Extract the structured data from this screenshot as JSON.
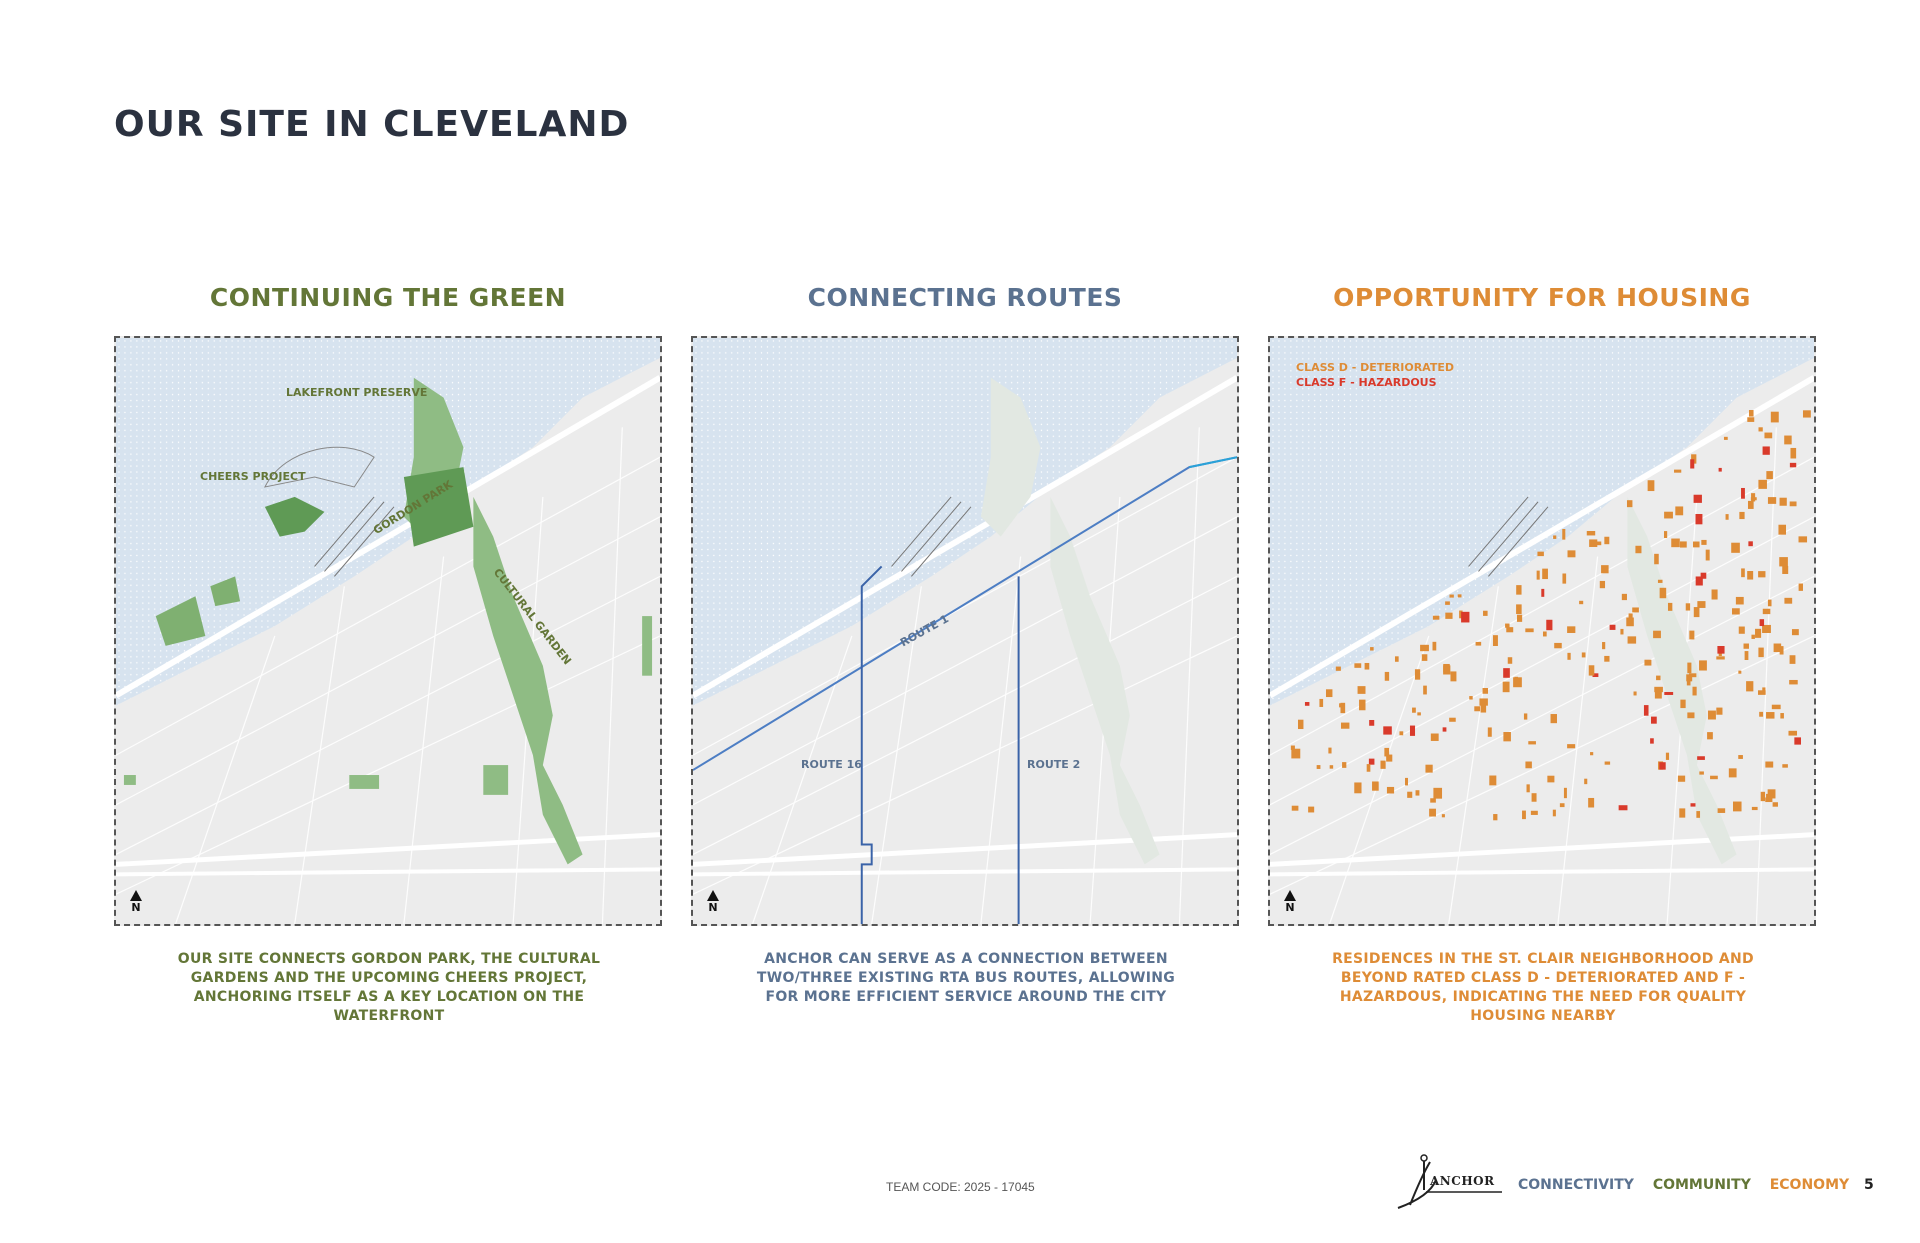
{
  "page_title": "OUR SITE IN CLEVELAND",
  "panels": [
    {
      "heading": "CONTINUING THE GREEN",
      "labels": {
        "lakefront": "LAKEFRONT PRESERVE",
        "cheers": "CHEERS PROJECT",
        "gordon": "GORDON PARK",
        "cultural": "CULTURAL GARDEN"
      },
      "north": "N",
      "caption": "OUR SITE CONNECTS GORDON PARK, THE CULTURAL GARDENS AND THE UPCOMING CHEERS PROJECT, ANCHORING ITSELF AS A KEY LOCATION ON THE WATERFRONT"
    },
    {
      "heading": "CONNECTING ROUTES",
      "labels": {
        "route1": "ROUTE 1",
        "route16": "ROUTE 16",
        "route2": "ROUTE 2"
      },
      "north": "N",
      "caption": "ANCHOR CAN SERVE AS A CONNECTION BETWEEN TWO/THREE EXISTING RTA BUS ROUTES, ALLOWING FOR MORE EFFICIENT SERVICE AROUND THE CITY"
    },
    {
      "heading": "OPPORTUNITY FOR HOUSING",
      "legend": {
        "class_d": "CLASS D - DETERIORATED",
        "class_f": "CLASS F - HAZARDOUS"
      },
      "north": "N",
      "caption": "RESIDENCES IN THE ST. CLAIR NEIGHBORHOOD AND BEYOND RATED CLASS D - DETERIORATED AND F - HAZARDOUS, INDICATING THE NEED FOR QUALITY HOUSING NEARBY"
    }
  ],
  "colors": {
    "green": "#637637",
    "blue": "#5b7290",
    "orange": "#de8c36",
    "hazard": "#d93a2b",
    "water": "#d7e3ef",
    "route": "#4d7ec4"
  },
  "footer": {
    "team_code": "TEAM CODE: 2025 - 17045",
    "logo_text": "ANCHOR",
    "words": [
      "CONNECTIVITY",
      "COMMUNITY",
      "ECONOMY"
    ],
    "page_number": "5"
  }
}
